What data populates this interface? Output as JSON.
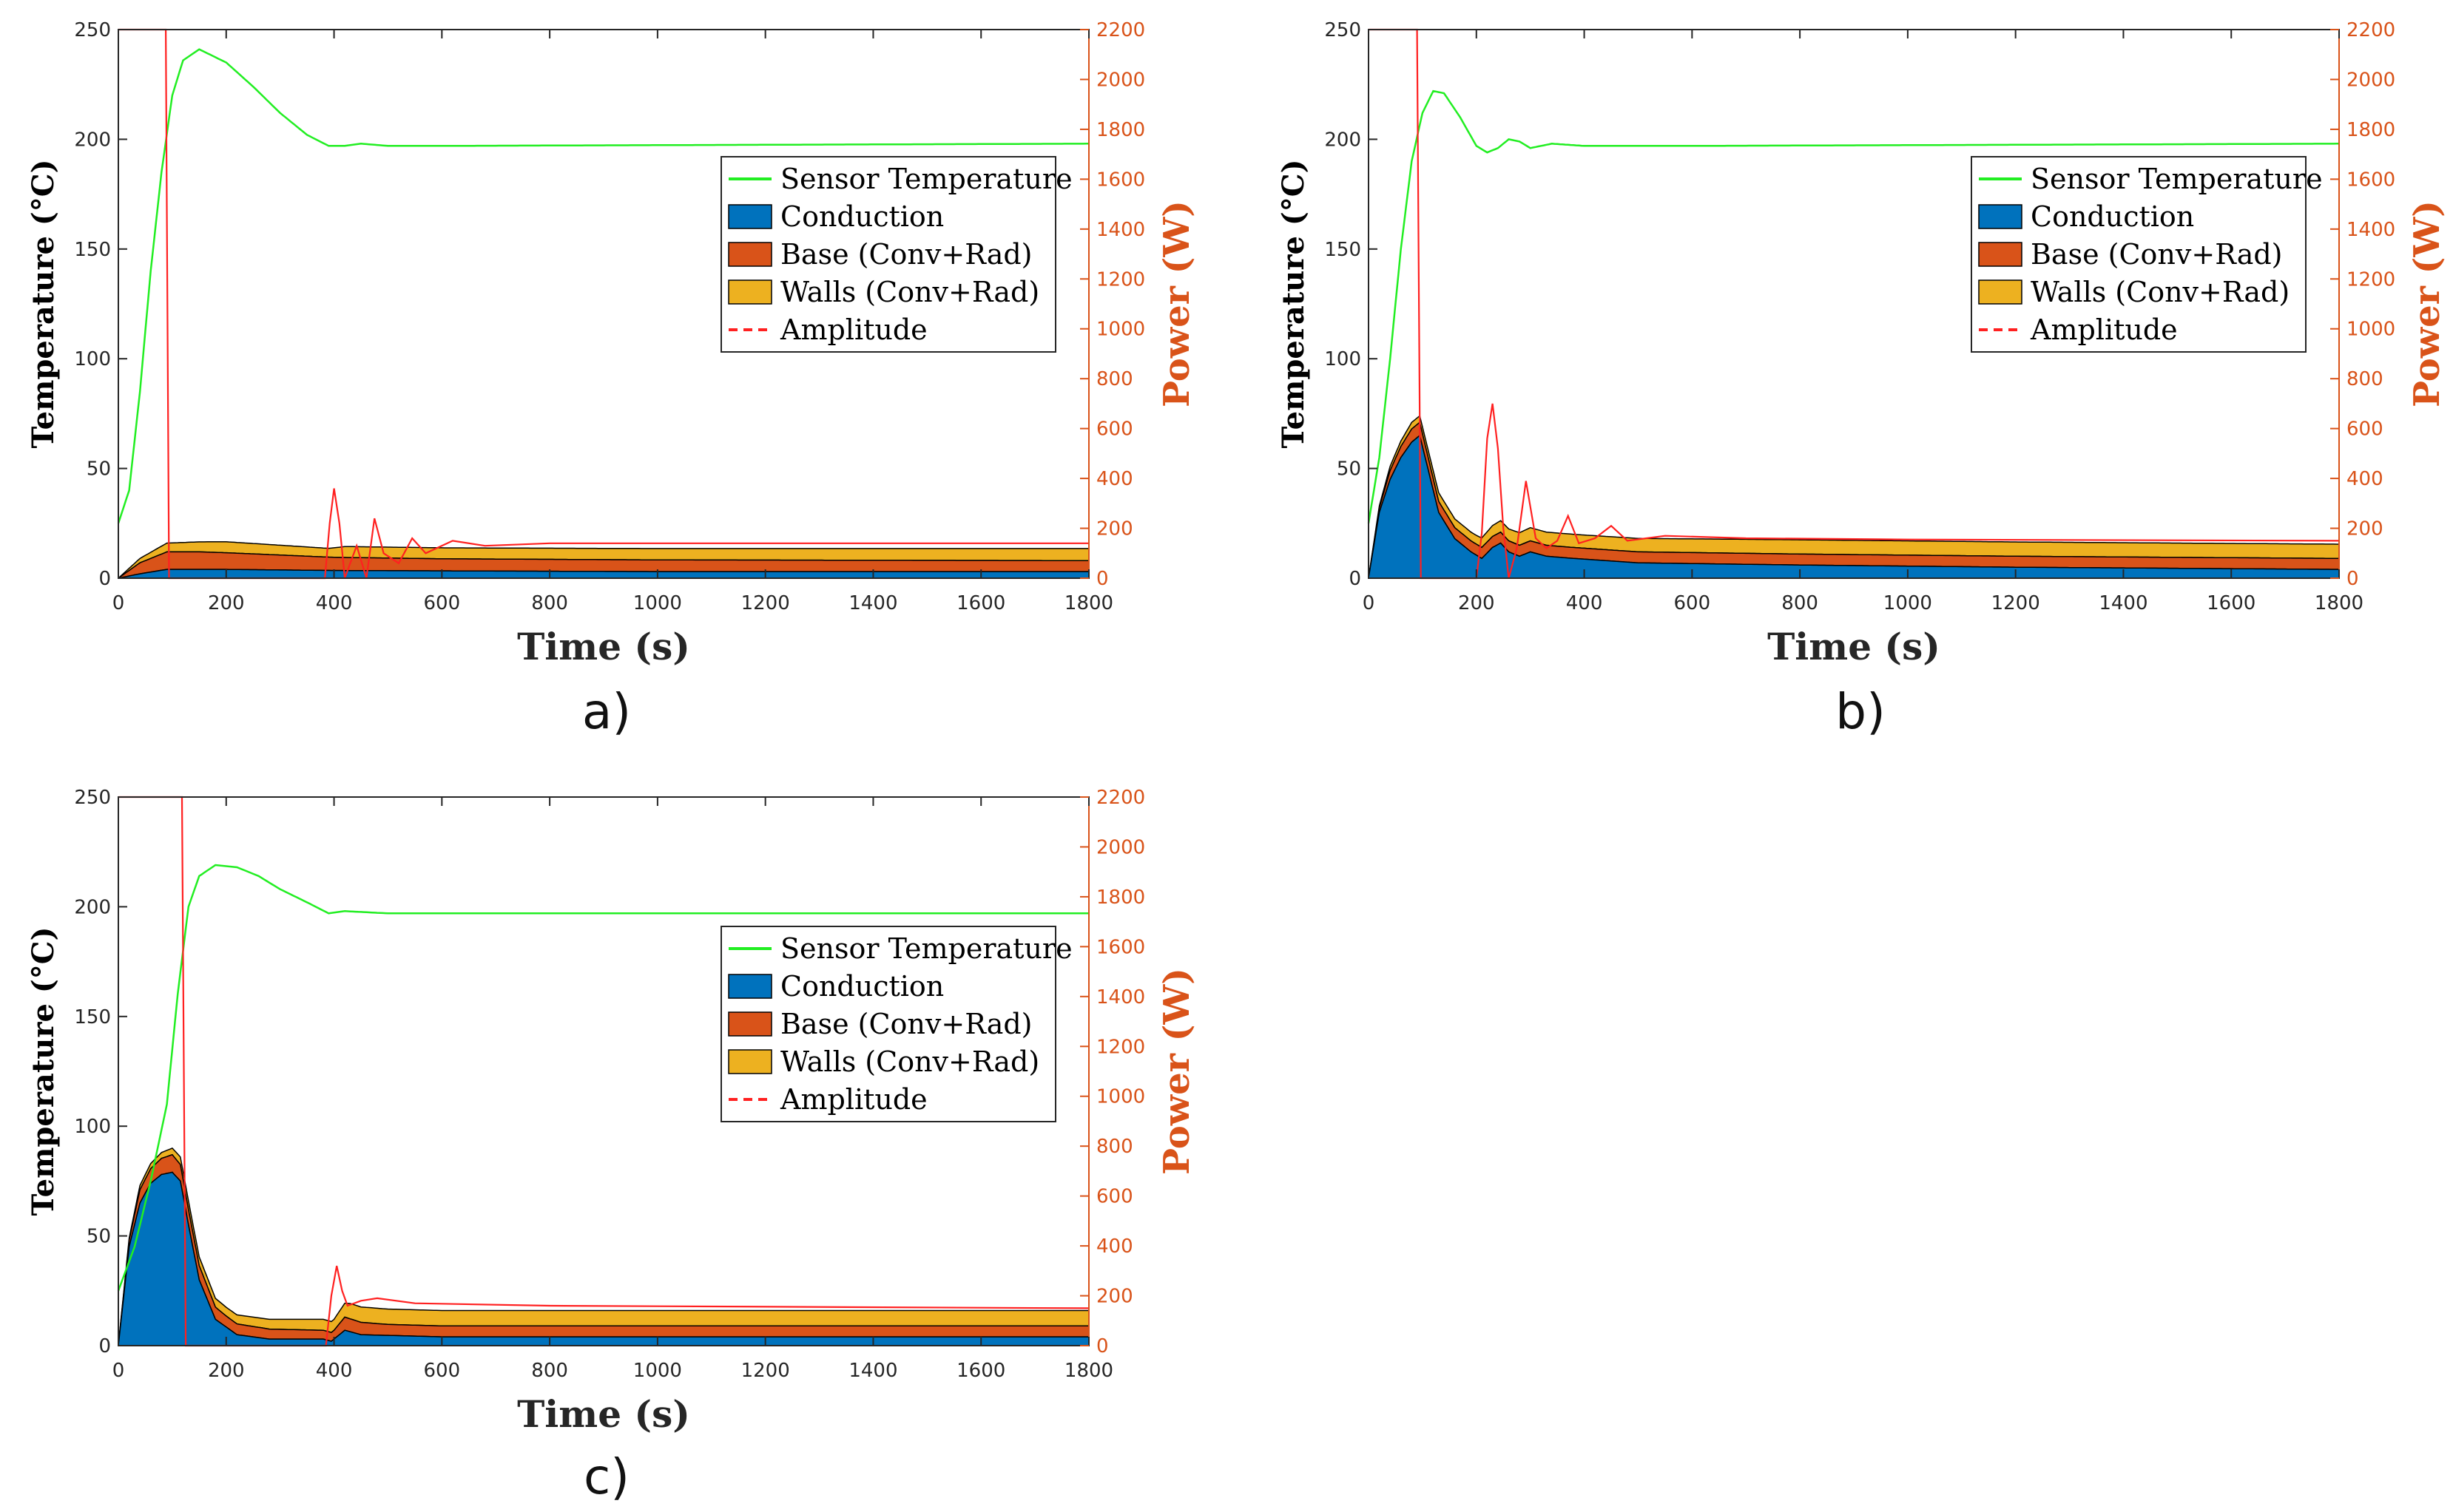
{
  "colors": {
    "sensor": "#22ee22",
    "conduction": "#0072BD",
    "base": "#D95319",
    "walls": "#EDB120",
    "amplitude": "#ff2020",
    "right_axis": "#D95319",
    "axis": "#262626"
  },
  "chart_data": [
    {
      "panel": "a)",
      "type": "area",
      "xlabel": "Time (s)",
      "ylabel": "Temperature (°C)",
      "y2label": "Power (W)",
      "xlim": [
        0,
        1800
      ],
      "ylim": [
        0,
        250
      ],
      "y2lim": [
        0,
        2200
      ],
      "xticks": [
        "0",
        "200",
        "400",
        "600",
        "800",
        "1000",
        "1200",
        "1400",
        "1600",
        "1800"
      ],
      "yticks": [
        "0",
        "50",
        "100",
        "150",
        "200",
        "250"
      ],
      "y2ticks": [
        "0",
        "200",
        "400",
        "600",
        "800",
        "1000",
        "1200",
        "1400",
        "1600",
        "1800",
        "2000",
        "2200"
      ],
      "legend_position": "right",
      "legend": [
        "Sensor Temperature",
        "Conduction",
        "Base (Conv+Rad)",
        "Walls (Conv+Rad)",
        "Amplitude"
      ],
      "sensor_temperature": [
        [
          0,
          25
        ],
        [
          20,
          40
        ],
        [
          40,
          85
        ],
        [
          60,
          140
        ],
        [
          80,
          185
        ],
        [
          100,
          220
        ],
        [
          120,
          236
        ],
        [
          150,
          241
        ],
        [
          200,
          235
        ],
        [
          250,
          224
        ],
        [
          300,
          212
        ],
        [
          350,
          202
        ],
        [
          390,
          197
        ],
        [
          420,
          197
        ],
        [
          450,
          198
        ],
        [
          500,
          197
        ],
        [
          600,
          197
        ],
        [
          1800,
          198
        ]
      ],
      "conduction": [
        [
          0,
          0
        ],
        [
          40,
          2
        ],
        [
          90,
          4
        ],
        [
          200,
          4
        ],
        [
          400,
          3.5
        ],
        [
          1000,
          3
        ],
        [
          1800,
          3
        ]
      ],
      "base": [
        [
          0,
          0
        ],
        [
          40,
          5
        ],
        [
          90,
          8
        ],
        [
          150,
          8
        ],
        [
          400,
          6
        ],
        [
          600,
          5.5
        ],
        [
          1800,
          5
        ]
      ],
      "walls": [
        [
          0,
          0
        ],
        [
          40,
          2
        ],
        [
          90,
          4
        ],
        [
          200,
          5
        ],
        [
          390,
          4
        ],
        [
          420,
          5
        ],
        [
          600,
          5
        ],
        [
          1800,
          5.5
        ]
      ],
      "amplitude": [
        [
          0,
          2200
        ],
        [
          88,
          2200
        ],
        [
          94,
          0
        ],
        [
          383,
          0
        ],
        [
          392,
          220
        ],
        [
          400,
          360
        ],
        [
          410,
          220
        ],
        [
          420,
          0
        ],
        [
          430,
          60
        ],
        [
          442,
          130
        ],
        [
          460,
          0
        ],
        [
          475,
          240
        ],
        [
          492,
          100
        ],
        [
          520,
          60
        ],
        [
          545,
          160
        ],
        [
          570,
          100
        ],
        [
          620,
          150
        ],
        [
          680,
          130
        ],
        [
          800,
          140
        ],
        [
          1800,
          140
        ]
      ]
    },
    {
      "panel": "b)",
      "type": "area",
      "xlabel": "Time (s)",
      "ylabel": "Temperature (°C)",
      "y2label": "Power (W)",
      "xlim": [
        0,
        1800
      ],
      "ylim": [
        0,
        250
      ],
      "y2lim": [
        0,
        2200
      ],
      "xticks": [
        "0",
        "200",
        "400",
        "600",
        "800",
        "1000",
        "1200",
        "1400",
        "1600",
        "1800"
      ],
      "yticks": [
        "0",
        "50",
        "100",
        "150",
        "200",
        "250"
      ],
      "y2ticks": [
        "0",
        "200",
        "400",
        "600",
        "800",
        "1000",
        "1200",
        "1400",
        "1600",
        "1800",
        "2000",
        "2200"
      ],
      "legend_position": "right",
      "legend": [
        "Sensor Temperature",
        "Conduction",
        "Base (Conv+Rad)",
        "Walls (Conv+Rad)",
        "Amplitude"
      ],
      "sensor_temperature": [
        [
          0,
          25
        ],
        [
          20,
          55
        ],
        [
          40,
          100
        ],
        [
          60,
          150
        ],
        [
          80,
          190
        ],
        [
          100,
          212
        ],
        [
          120,
          222
        ],
        [
          140,
          221
        ],
        [
          170,
          210
        ],
        [
          200,
          197
        ],
        [
          220,
          194
        ],
        [
          240,
          196
        ],
        [
          260,
          200
        ],
        [
          280,
          199
        ],
        [
          300,
          196
        ],
        [
          340,
          198
        ],
        [
          400,
          197
        ],
        [
          600,
          197
        ],
        [
          1800,
          198
        ]
      ],
      "conduction": [
        [
          0,
          0
        ],
        [
          20,
          30
        ],
        [
          40,
          45
        ],
        [
          60,
          55
        ],
        [
          80,
          62
        ],
        [
          95,
          65
        ],
        [
          110,
          50
        ],
        [
          130,
          30
        ],
        [
          160,
          18
        ],
        [
          190,
          12
        ],
        [
          210,
          9
        ],
        [
          230,
          14
        ],
        [
          245,
          16
        ],
        [
          260,
          12
        ],
        [
          280,
          10
        ],
        [
          300,
          12
        ],
        [
          330,
          10
        ],
        [
          380,
          9
        ],
        [
          500,
          7
        ],
        [
          800,
          6
        ],
        [
          1200,
          5
        ],
        [
          1800,
          4
        ]
      ],
      "base": [
        [
          0,
          0
        ],
        [
          40,
          4
        ],
        [
          80,
          6
        ],
        [
          95,
          6
        ],
        [
          130,
          5
        ],
        [
          200,
          5
        ],
        [
          400,
          5
        ],
        [
          800,
          5
        ],
        [
          1800,
          5
        ]
      ],
      "walls": [
        [
          0,
          0
        ],
        [
          40,
          2
        ],
        [
          80,
          3
        ],
        [
          95,
          3
        ],
        [
          130,
          4
        ],
        [
          200,
          4
        ],
        [
          230,
          5
        ],
        [
          300,
          6
        ],
        [
          400,
          6
        ],
        [
          800,
          6.5
        ],
        [
          1800,
          6.5
        ]
      ],
      "amplitude": [
        [
          0,
          2200
        ],
        [
          90,
          2200
        ],
        [
          97,
          0
        ],
        [
          200,
          0
        ],
        [
          210,
          180
        ],
        [
          220,
          560
        ],
        [
          230,
          700
        ],
        [
          240,
          520
        ],
        [
          250,
          200
        ],
        [
          260,
          0
        ],
        [
          275,
          120
        ],
        [
          292,
          390
        ],
        [
          310,
          160
        ],
        [
          330,
          120
        ],
        [
          350,
          150
        ],
        [
          370,
          250
        ],
        [
          390,
          140
        ],
        [
          420,
          160
        ],
        [
          450,
          210
        ],
        [
          480,
          150
        ],
        [
          550,
          170
        ],
        [
          700,
          160
        ],
        [
          1000,
          155
        ],
        [
          1800,
          150
        ]
      ]
    },
    {
      "panel": "c)",
      "type": "area",
      "xlabel": "Time (s)",
      "ylabel": "Temperature (°C)",
      "y2label": "Power (W)",
      "xlim": [
        0,
        1800
      ],
      "ylim": [
        0,
        250
      ],
      "y2lim": [
        0,
        2200
      ],
      "xticks": [
        "0",
        "200",
        "400",
        "600",
        "800",
        "1000",
        "1200",
        "1400",
        "1600",
        "1800"
      ],
      "yticks": [
        "0",
        "50",
        "100",
        "150",
        "200",
        "250"
      ],
      "y2ticks": [
        "0",
        "200",
        "400",
        "600",
        "800",
        "1000",
        "1200",
        "1400",
        "1600",
        "1800",
        "2000",
        "2200"
      ],
      "legend_position": "right",
      "legend": [
        "Sensor Temperature",
        "Conduction",
        "Base (Conv+Rad)",
        "Walls (Conv+Rad)",
        "Amplitude"
      ],
      "sensor_temperature": [
        [
          0,
          25
        ],
        [
          30,
          45
        ],
        [
          60,
          75
        ],
        [
          90,
          110
        ],
        [
          110,
          160
        ],
        [
          130,
          200
        ],
        [
          150,
          214
        ],
        [
          180,
          219
        ],
        [
          220,
          218
        ],
        [
          260,
          214
        ],
        [
          300,
          208
        ],
        [
          350,
          202
        ],
        [
          390,
          197
        ],
        [
          420,
          198
        ],
        [
          500,
          197
        ],
        [
          1800,
          197
        ]
      ],
      "conduction": [
        [
          0,
          0
        ],
        [
          20,
          45
        ],
        [
          40,
          65
        ],
        [
          60,
          74
        ],
        [
          80,
          78
        ],
        [
          100,
          79
        ],
        [
          115,
          75
        ],
        [
          130,
          55
        ],
        [
          150,
          30
        ],
        [
          180,
          12
        ],
        [
          220,
          5
        ],
        [
          280,
          3
        ],
        [
          380,
          3
        ],
        [
          395,
          2
        ],
        [
          420,
          7
        ],
        [
          450,
          5
        ],
        [
          600,
          4
        ],
        [
          1800,
          4
        ]
      ],
      "base": [
        [
          0,
          0
        ],
        [
          40,
          6
        ],
        [
          100,
          8
        ],
        [
          130,
          7
        ],
        [
          200,
          5
        ],
        [
          380,
          4
        ],
        [
          400,
          4
        ],
        [
          420,
          6
        ],
        [
          500,
          5
        ],
        [
          1800,
          5
        ]
      ],
      "walls": [
        [
          0,
          0
        ],
        [
          40,
          2
        ],
        [
          100,
          3
        ],
        [
          130,
          4
        ],
        [
          200,
          4
        ],
        [
          380,
          5
        ],
        [
          400,
          5
        ],
        [
          430,
          7
        ],
        [
          500,
          7
        ],
        [
          1800,
          7
        ]
      ],
      "amplitude": [
        [
          0,
          2200
        ],
        [
          118,
          2200
        ],
        [
          125,
          0
        ],
        [
          385,
          0
        ],
        [
          395,
          200
        ],
        [
          405,
          320
        ],
        [
          415,
          220
        ],
        [
          425,
          160
        ],
        [
          450,
          180
        ],
        [
          480,
          190
        ],
        [
          550,
          170
        ],
        [
          800,
          160
        ],
        [
          1800,
          150
        ]
      ]
    }
  ]
}
